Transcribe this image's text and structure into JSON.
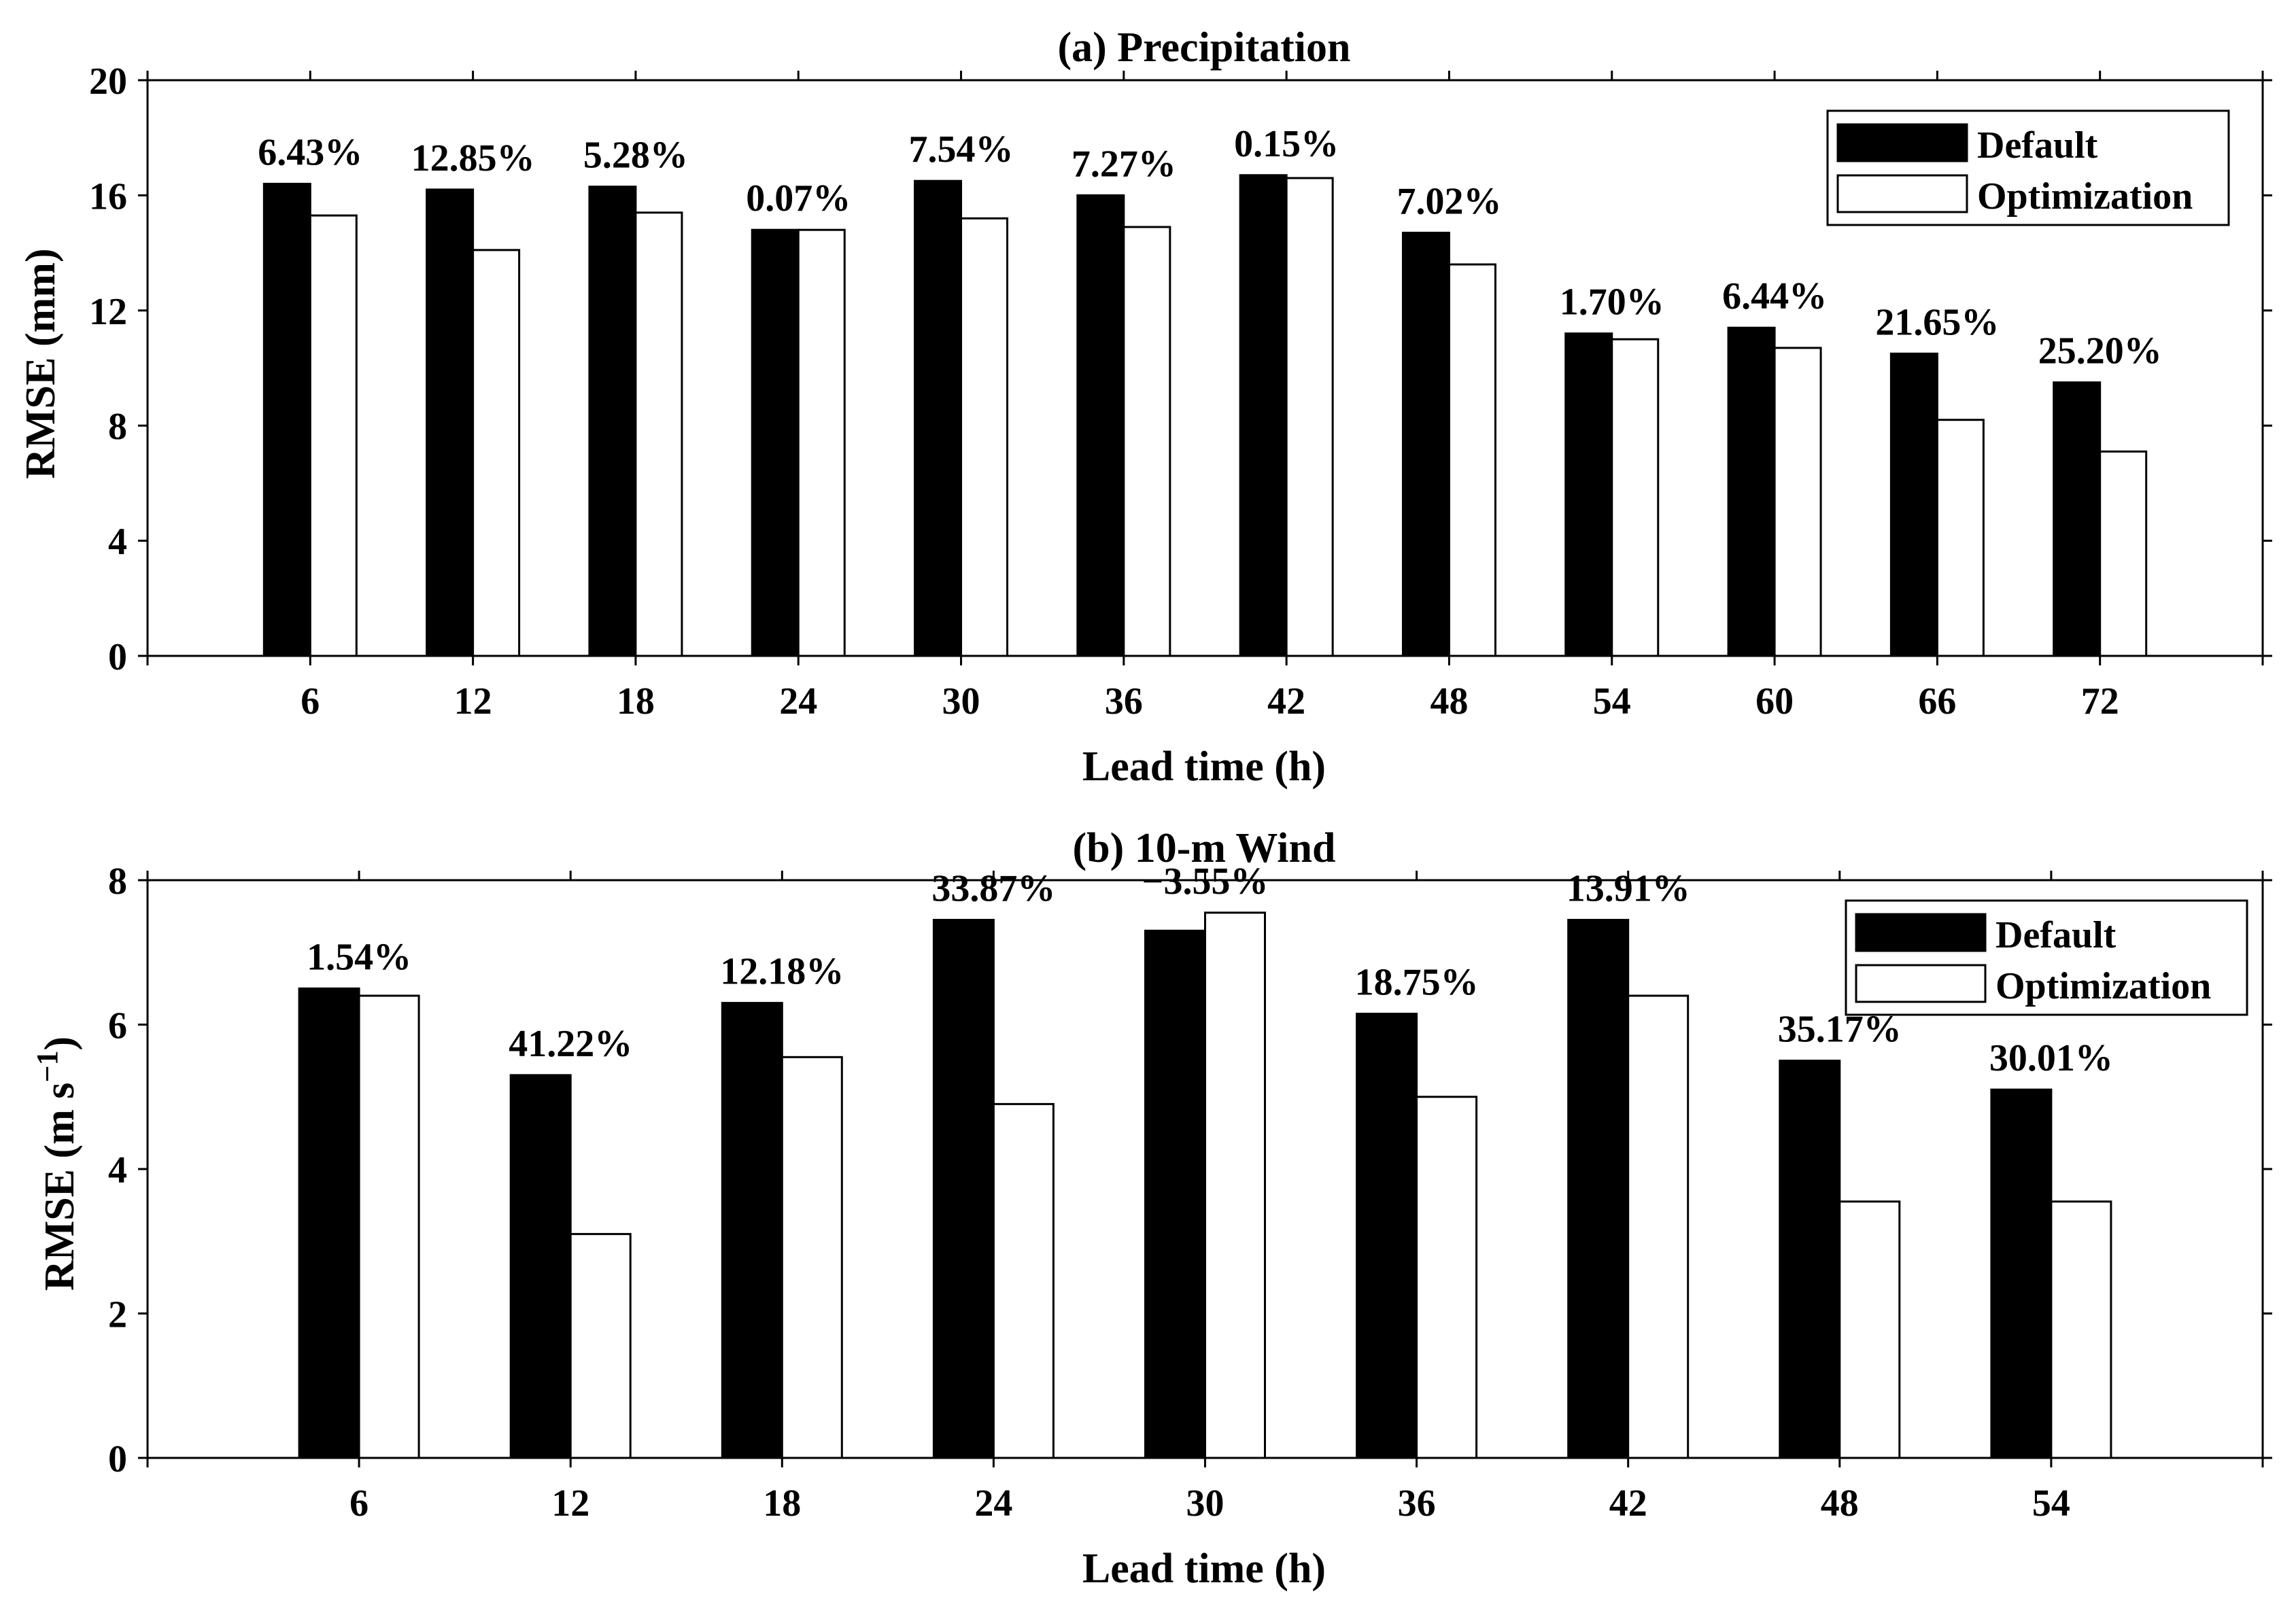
{
  "chart_data": [
    {
      "panel": "a",
      "type": "bar",
      "title": "(a)  Precipitation",
      "xlabel": "Lead time (h)",
      "ylabel": "RMSE (mm)",
      "ylim": [
        0,
        20
      ],
      "yticks": [
        0,
        4,
        8,
        12,
        16,
        20
      ],
      "categories": [
        "6",
        "12",
        "18",
        "24",
        "30",
        "36",
        "42",
        "48",
        "54",
        "60",
        "66",
        "72"
      ],
      "series": [
        {
          "name": "Default",
          "color": "#000000",
          "values": [
            16.4,
            16.2,
            16.3,
            14.8,
            16.5,
            16.0,
            16.7,
            14.7,
            11.2,
            11.4,
            10.5,
            9.5
          ]
        },
        {
          "name": "Optimization",
          "color": "#ffffff",
          "values": [
            15.3,
            14.1,
            15.4,
            14.8,
            15.2,
            14.9,
            16.6,
            13.6,
            11.0,
            10.7,
            8.2,
            7.1
          ]
        }
      ],
      "annotations": [
        "6.43%",
        "12.85%",
        "5.28%",
        "0.07%",
        "7.54%",
        "7.27%",
        "0.15%",
        "7.02%",
        "1.70%",
        "6.44%",
        "21.65%",
        "25.20%"
      ],
      "legend_position": "top-right",
      "grid": false
    },
    {
      "panel": "b",
      "type": "bar",
      "title": "(b)  10-m Wind",
      "xlabel": "Lead time (h)",
      "ylabel": "RMSE (m s",
      "ylabel_superscript": "−1",
      "ylabel_close": ")",
      "ylim": [
        0,
        8
      ],
      "yticks": [
        0,
        2,
        4,
        6,
        8
      ],
      "categories": [
        "6",
        "12",
        "18",
        "24",
        "30",
        "36",
        "42",
        "48",
        "54"
      ],
      "series": [
        {
          "name": "Default",
          "color": "#000000",
          "values": [
            6.5,
            5.3,
            6.3,
            7.45,
            7.3,
            6.15,
            7.45,
            5.5,
            5.1
          ]
        },
        {
          "name": "Optimization",
          "color": "#ffffff",
          "values": [
            6.4,
            3.1,
            5.55,
            4.9,
            7.55,
            5.0,
            6.4,
            3.55,
            3.55
          ]
        }
      ],
      "annotations": [
        "1.54%",
        "41.22%",
        "12.18%",
        "33.87%",
        "−3.55%",
        "18.75%",
        "13.91%",
        "35.17%",
        "30.01%"
      ],
      "legend_position": "top-right",
      "grid": false
    }
  ]
}
